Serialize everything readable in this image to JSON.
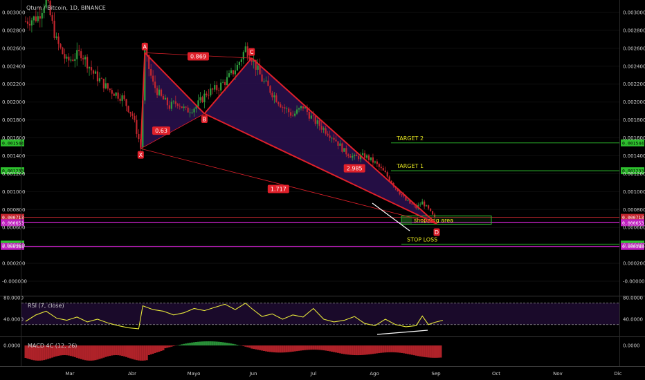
{
  "chart_title": "Qtum / Bitcoin, 1D, BINANCE",
  "colors": {
    "up": "#2e9e3e",
    "down": "#c2262e",
    "pattern": "#e0202a",
    "pattern_fill": "#2a1050",
    "target": "#2ec02e",
    "support": "#c020c0",
    "rsi": "#e8e83a",
    "annotation": "#e8e820"
  },
  "chart_data": [
    {
      "type": "candlestick",
      "title": "Qtum / Bitcoin, 1D, BINANCE",
      "x_ticks": [
        "Mar",
        "Abr",
        "Mayo",
        "Jun",
        "Jul",
        "Ago",
        "Sep",
        "Oct",
        "Nov",
        "Dic"
      ],
      "y_ticks": [
        "0.003000",
        "0.002800",
        "0.002600",
        "0.002400",
        "0.002200",
        "0.002000",
        "0.001800",
        "0.001600",
        "0.001400",
        "0.001200",
        "0.001000",
        "0.000800",
        "0.000600",
        "0.000400",
        "0.000200",
        "-0.000000"
      ],
      "ylim": [
        -0.0001,
        0.00315
      ],
      "close_path": [
        [
          0,
          0.0029
        ],
        [
          6,
          0.00295
        ],
        [
          10,
          0.00315
        ],
        [
          15,
          0.00268
        ],
        [
          20,
          0.00245
        ],
        [
          27,
          0.00255
        ],
        [
          33,
          0.00232
        ],
        [
          40,
          0.00215
        ],
        [
          47,
          0.00205
        ],
        [
          52,
          0.00185
        ],
        [
          56,
          0.0015
        ],
        [
          58,
          0.00255
        ],
        [
          62,
          0.0022
        ],
        [
          66,
          0.00205
        ],
        [
          70,
          0.00195
        ],
        [
          74,
          0.002
        ],
        [
          78,
          0.0019
        ],
        [
          83,
          0.00195
        ],
        [
          88,
          0.0021
        ],
        [
          93,
          0.00215
        ],
        [
          98,
          0.00225
        ],
        [
          103,
          0.0024
        ],
        [
          107,
          0.0026
        ],
        [
          110,
          0.0025
        ],
        [
          115,
          0.00225
        ],
        [
          120,
          0.0021
        ],
        [
          125,
          0.00195
        ],
        [
          130,
          0.00185
        ],
        [
          135,
          0.00195
        ],
        [
          140,
          0.0018
        ],
        [
          145,
          0.0017
        ],
        [
          150,
          0.0016
        ],
        [
          155,
          0.00145
        ],
        [
          160,
          0.00138
        ],
        [
          165,
          0.0014
        ],
        [
          170,
          0.00132
        ],
        [
          175,
          0.0012
        ],
        [
          180,
          0.00105
        ],
        [
          185,
          0.0009
        ],
        [
          190,
          0.00082
        ],
        [
          193,
          0.00088
        ],
        [
          196,
          0.0008
        ],
        [
          199,
          0.0007
        ]
      ],
      "harmonic_pattern": {
        "points": [
          {
            "label": "X",
            "day": 56,
            "price": 0.00148
          },
          {
            "label": "A",
            "day": 58,
            "price": 0.00255
          },
          {
            "label": "B",
            "day": 87,
            "price": 0.00187
          },
          {
            "label": "C",
            "day": 110,
            "price": 0.00249
          },
          {
            "label": "D",
            "day": 200,
            "price": 0.00064
          }
        ],
        "ratios": [
          {
            "label": "0.869",
            "day": 84,
            "price": 0.00251
          },
          {
            "label": "0.63",
            "day": 66,
            "price": 0.00168
          },
          {
            "label": "2.985",
            "day": 160,
            "price": 0.00126
          },
          {
            "label": "1.717",
            "day": 123,
            "price": 0.00103
          }
        ]
      },
      "levels": [
        {
          "name": "TARGET 2",
          "price": 0.001544,
          "badge": "0.001544",
          "color": "#2ec02e"
        },
        {
          "name": "TARGET 1",
          "price": 0.001233,
          "badge": "0.001233",
          "color": "#2ec02e"
        },
        {
          "name": "",
          "price": 0.000713,
          "badge": "0.000713",
          "color": "#c2262e"
        },
        {
          "name": "",
          "price": 0.000653,
          "badge": "0.000653",
          "color": "#c020c0"
        },
        {
          "name": "STOP LOSS",
          "price": 0.000414,
          "badge": "0.000414",
          "color": "#2ec02e"
        },
        {
          "name": "",
          "price": 0.000388,
          "badge": "0.000388",
          "color": "#c020c0"
        }
      ],
      "zone_label": "shopping area"
    },
    {
      "type": "line",
      "indicator": "RSI (7, close)",
      "y_ticks": [
        "80.0000",
        "40.0000"
      ],
      "ylim": [
        15,
        85
      ],
      "bands": [
        30,
        70
      ],
      "values": [
        [
          0,
          36
        ],
        [
          5,
          48
        ],
        [
          10,
          55
        ],
        [
          15,
          42
        ],
        [
          20,
          38
        ],
        [
          25,
          44
        ],
        [
          30,
          35
        ],
        [
          35,
          40
        ],
        [
          40,
          33
        ],
        [
          45,
          28
        ],
        [
          50,
          24
        ],
        [
          55,
          22
        ],
        [
          57,
          65
        ],
        [
          62,
          58
        ],
        [
          67,
          55
        ],
        [
          72,
          48
        ],
        [
          77,
          52
        ],
        [
          82,
          60
        ],
        [
          87,
          56
        ],
        [
          92,
          62
        ],
        [
          97,
          68
        ],
        [
          102,
          58
        ],
        [
          107,
          70
        ],
        [
          110,
          60
        ],
        [
          115,
          45
        ],
        [
          120,
          50
        ],
        [
          125,
          40
        ],
        [
          130,
          48
        ],
        [
          135,
          44
        ],
        [
          140,
          60
        ],
        [
          145,
          40
        ],
        [
          150,
          35
        ],
        [
          155,
          38
        ],
        [
          160,
          45
        ],
        [
          165,
          32
        ],
        [
          170,
          28
        ],
        [
          175,
          40
        ],
        [
          180,
          30
        ],
        [
          185,
          26
        ],
        [
          190,
          28
        ],
        [
          193,
          46
        ],
        [
          196,
          30
        ],
        [
          199,
          34
        ],
        [
          203,
          38
        ]
      ]
    },
    {
      "type": "bar",
      "indicator": "MACD 4C (12, 26)",
      "y_ticks": [
        "0.0000"
      ],
      "ylim": [
        -0.00045,
        0.0002
      ]
    }
  ]
}
